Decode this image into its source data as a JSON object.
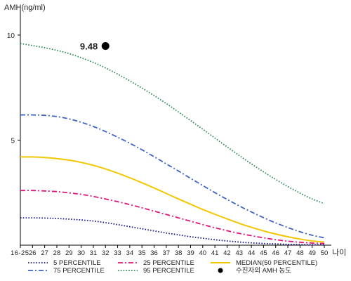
{
  "chart_data": {
    "type": "line",
    "ylabel": "AMH(ng/ml)",
    "xlabel": "나이",
    "x": [
      "16-25",
      "26",
      "27",
      "28",
      "29",
      "30",
      "31",
      "32",
      "33",
      "34",
      "35",
      "36",
      "37",
      "38",
      "39",
      "40",
      "41",
      "42",
      "43",
      "44",
      "45",
      "46",
      "47",
      "48",
      "49",
      "50"
    ],
    "ylim": [
      0,
      11
    ],
    "yticks": [
      5,
      10
    ],
    "series": [
      {
        "name": "5 PERCENTILE",
        "color": "#1a1a8c",
        "dash": "dot",
        "values": [
          1.3,
          1.3,
          1.29,
          1.27,
          1.24,
          1.2,
          1.15,
          1.07,
          0.98,
          0.88,
          0.78,
          0.68,
          0.58,
          0.49,
          0.4,
          0.33,
          0.26,
          0.2,
          0.15,
          0.11,
          0.08,
          0.06,
          0.04,
          0.03,
          0.02,
          0.02
        ]
      },
      {
        "name": "25 PERCENTILE",
        "color": "#e0157a",
        "dash": "dashdot",
        "values": [
          2.6,
          2.6,
          2.58,
          2.55,
          2.49,
          2.42,
          2.32,
          2.2,
          2.07,
          1.93,
          1.78,
          1.62,
          1.46,
          1.3,
          1.14,
          0.98,
          0.83,
          0.69,
          0.56,
          0.45,
          0.35,
          0.26,
          0.19,
          0.14,
          0.1,
          0.08
        ]
      },
      {
        "name": "MEDIAN(50 PERCENTILE)",
        "color": "#f3c700",
        "dash": "solid",
        "values": [
          4.2,
          4.2,
          4.17,
          4.12,
          4.05,
          3.94,
          3.8,
          3.63,
          3.43,
          3.21,
          2.97,
          2.72,
          2.46,
          2.2,
          1.95,
          1.7,
          1.47,
          1.25,
          1.04,
          0.85,
          0.68,
          0.53,
          0.4,
          0.29,
          0.2,
          0.15
        ]
      },
      {
        "name": "75 PERCENTILE",
        "color": "#3f63c4",
        "dash": "dashdot",
        "values": [
          6.2,
          6.2,
          6.18,
          6.12,
          6.01,
          5.85,
          5.65,
          5.41,
          5.14,
          4.85,
          4.54,
          4.21,
          3.87,
          3.53,
          3.18,
          2.84,
          2.5,
          2.18,
          1.87,
          1.58,
          1.31,
          1.06,
          0.84,
          0.64,
          0.47,
          0.35
        ]
      },
      {
        "name": "95 PERCENTILE",
        "color": "#2e8b57",
        "dash": "dot",
        "values": [
          9.6,
          9.5,
          9.4,
          9.27,
          9.12,
          8.92,
          8.7,
          8.44,
          8.14,
          7.82,
          7.48,
          7.12,
          6.74,
          6.34,
          5.93,
          5.52,
          5.1,
          4.68,
          4.27,
          3.87,
          3.49,
          3.13,
          2.79,
          2.48,
          2.2,
          1.98
        ]
      }
    ],
    "point": {
      "name": "수진자의 AMH 농도",
      "x": "32",
      "value": 9.48,
      "label": "9.48",
      "color": "#000000"
    },
    "legend_order": [
      "5 PERCENTILE",
      "25 PERCENTILE",
      "MEDIAN(50 PERCENTILE)",
      "75 PERCENTILE",
      "95 PERCENTILE",
      "수진자의 AMH 농도"
    ],
    "legend_position": "bottom"
  }
}
